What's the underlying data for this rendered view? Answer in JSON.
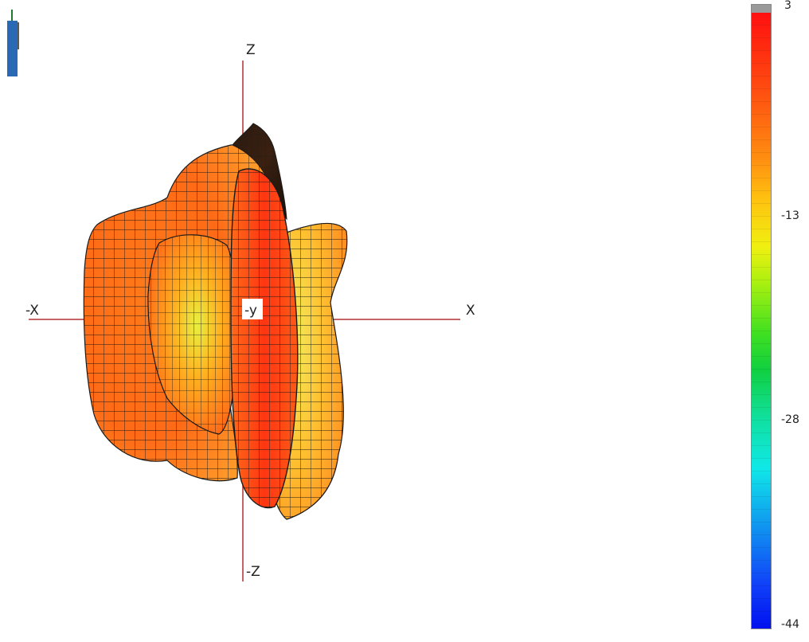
{
  "axes": {
    "z_pos": "Z",
    "z_neg": "-Z",
    "x_pos": "X",
    "x_neg": "-X",
    "y_neg": "-y"
  },
  "colorbar": {
    "tick_labels": [
      "3",
      "-13",
      "-28",
      "-44"
    ],
    "min": -44,
    "max": 3,
    "colors": [
      "#ff1010",
      "#ff9010",
      "#f0f010",
      "#10d040",
      "#10e8e8",
      "#0010f0"
    ]
  },
  "colors": {
    "axis_line": "#b03030",
    "mesh_line": "#1a1a1a",
    "surface_high": "#ff3a12",
    "surface_mid": "#ff8a20",
    "surface_low": "#f0f050"
  },
  "icons": {
    "corner_indicator": "bar-indicator-icon"
  }
}
